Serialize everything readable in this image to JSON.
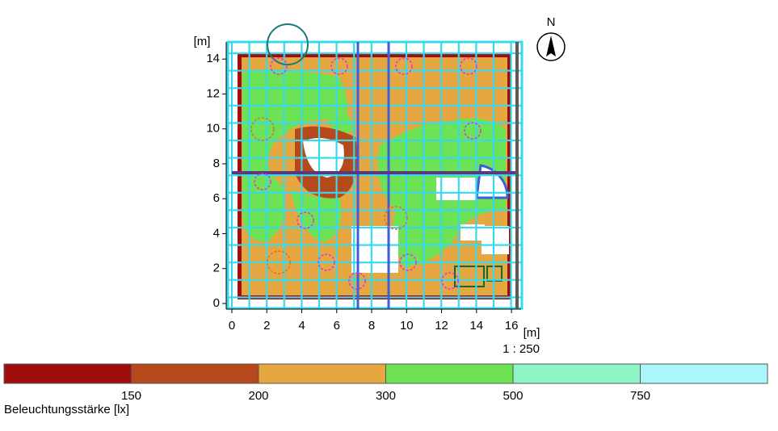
{
  "plan": {
    "y_unit": "[m]",
    "x_unit": "[m]",
    "scale": "1 : 250",
    "north": "N",
    "xticks": [
      0,
      2,
      4,
      6,
      8,
      10,
      12,
      14,
      16
    ],
    "yticks": [
      0,
      2,
      4,
      6,
      8,
      10,
      12,
      14
    ]
  },
  "legend": {
    "title": "Beleuchtungsstärke [lx]",
    "thresholds": [
      150,
      200,
      300,
      500,
      750
    ],
    "colors": [
      "#a00d0d",
      "#b5491c",
      "#e6a740",
      "#6ee255",
      "#8ef5c6",
      "#aaf6fb"
    ]
  }
}
